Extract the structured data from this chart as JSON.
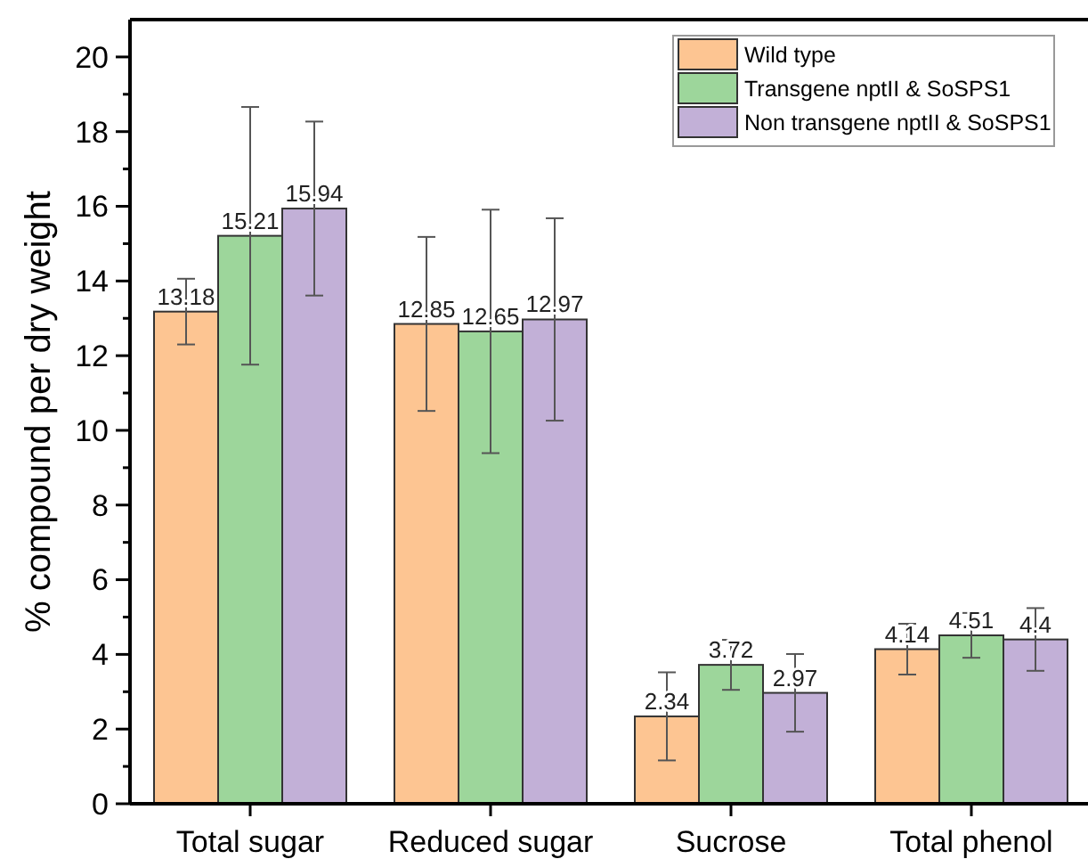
{
  "chart_data": {
    "type": "bar",
    "ylabel": "% compound per dry weight",
    "categories": [
      "Total sugar",
      "Reduced sugar",
      "Sucrose",
      "Total phenol"
    ],
    "series": [
      {
        "name": "Wild type",
        "color": "#fdc592",
        "values": [
          13.18,
          12.85,
          2.34,
          4.14
        ],
        "errors": [
          0.88,
          2.33,
          1.18,
          0.68
        ]
      },
      {
        "name": "Transgene nptII & SoSPS1",
        "color": "#9dd69b",
        "values": [
          15.21,
          12.65,
          3.72,
          4.51
        ],
        "errors": [
          3.45,
          3.26,
          0.67,
          0.6
        ]
      },
      {
        "name": "Non transgene nptII & SoSPS1",
        "color": "#c2b0d7",
        "values": [
          15.94,
          12.97,
          2.97,
          4.4
        ],
        "errors": [
          2.33,
          2.71,
          1.04,
          0.84
        ]
      }
    ],
    "ylim": [
      0,
      21
    ],
    "yticks": [
      0,
      {
        "value": 1,
        "label": null
      },
      2,
      {
        "value": 3,
        "label": null
      },
      4,
      {
        "value": 5,
        "label": null
      },
      6,
      {
        "value": 7,
        "label": null
      },
      8,
      {
        "value": 9,
        "label": null
      },
      10,
      {
        "value": 11,
        "label": null
      },
      12,
      {
        "value": 13,
        "label": null
      },
      14,
      {
        "value": 15,
        "label": null
      },
      16,
      {
        "value": 17,
        "label": null
      },
      18,
      {
        "value": 19,
        "label": null
      },
      20
    ],
    "data_labels": true,
    "grid": false,
    "legend": "top right"
  }
}
